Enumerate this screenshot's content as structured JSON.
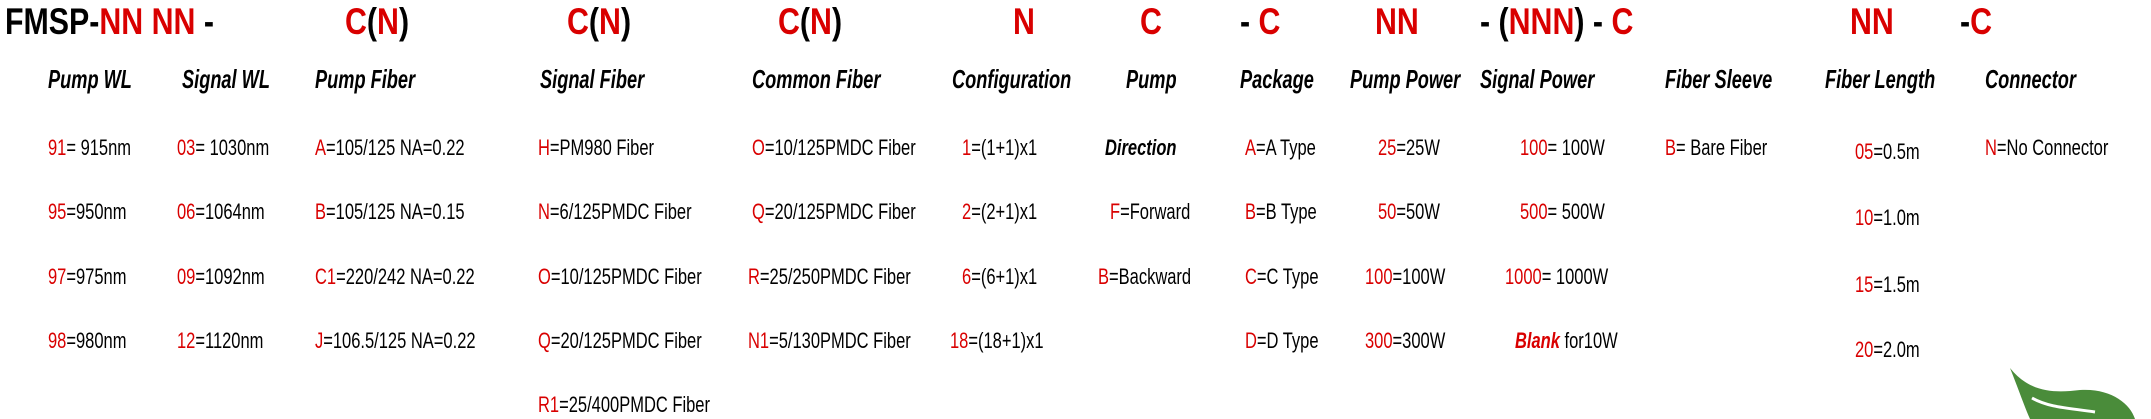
{
  "code_pattern": [
    {
      "parts": [
        {
          "t": "FMSP-",
          "c": "blk"
        },
        {
          "t": "NN NN",
          "c": "red"
        },
        {
          "t": " -",
          "c": "blk"
        }
      ]
    },
    {
      "parts": [
        {
          "t": "C",
          "c": "red"
        },
        {
          "t": "(",
          "c": "blk"
        },
        {
          "t": "N",
          "c": "red"
        },
        {
          "t": ")",
          "c": "blk"
        }
      ]
    },
    {
      "parts": [
        {
          "t": "C",
          "c": "red"
        },
        {
          "t": "(",
          "c": "blk"
        },
        {
          "t": "N",
          "c": "red"
        },
        {
          "t": ")",
          "c": "blk"
        }
      ]
    },
    {
      "parts": [
        {
          "t": "C",
          "c": "red"
        },
        {
          "t": "(",
          "c": "blk"
        },
        {
          "t": "N",
          "c": "red"
        },
        {
          "t": ")",
          "c": "blk"
        }
      ]
    },
    {
      "parts": [
        {
          "t": "N",
          "c": "red"
        }
      ]
    },
    {
      "parts": [
        {
          "t": "C",
          "c": "red"
        }
      ]
    },
    {
      "parts": [
        {
          "t": "- ",
          "c": "blk"
        },
        {
          "t": "C",
          "c": "red"
        }
      ]
    },
    {
      "parts": [
        {
          "t": "NN",
          "c": "red"
        }
      ]
    },
    {
      "parts": [
        {
          "t": "- (",
          "c": "blk"
        },
        {
          "t": "NNN",
          "c": "red"
        },
        {
          "t": ") - ",
          "c": "blk"
        },
        {
          "t": "C",
          "c": "red"
        }
      ]
    },
    {
      "parts": [
        {
          "t": "NN",
          "c": "red"
        }
      ]
    },
    {
      "parts": [
        {
          "t": "-",
          "c": "blk"
        },
        {
          "t": "C",
          "c": "red"
        }
      ]
    }
  ],
  "columns": [
    {
      "header": "Pump WL",
      "items": [
        {
          "code": "91",
          "desc": "= 915nm"
        },
        {
          "code": "95",
          "desc": "=950nm"
        },
        {
          "code": "97",
          "desc": "=975nm"
        },
        {
          "code": "98",
          "desc": "=980nm"
        }
      ]
    },
    {
      "header": "Signal WL",
      "items": [
        {
          "code": "03",
          "desc": "= 1030nm"
        },
        {
          "code": "06",
          "desc": "=1064nm"
        },
        {
          "code": "09",
          "desc": "=1092nm"
        },
        {
          "code": "12",
          "desc": "=1120nm"
        }
      ]
    },
    {
      "header": "Pump Fiber",
      "items": [
        {
          "code": "A",
          "desc": "=105/125 NA=0.22"
        },
        {
          "code": "B",
          "desc": "=105/125 NA=0.15"
        },
        {
          "code": "C1",
          "desc": "=220/242 NA=0.22"
        },
        {
          "code": "J",
          "desc": "=106.5/125 NA=0.22"
        }
      ]
    },
    {
      "header": "Signal Fiber",
      "items": [
        {
          "code": "H",
          "desc": "=PM980 Fiber"
        },
        {
          "code": "N",
          "desc": "=6/125PMDC Fiber"
        },
        {
          "code": "O",
          "desc": "=10/125PMDC Fiber"
        },
        {
          "code": "Q",
          "desc": "=20/125PMDC Fiber"
        },
        {
          "code": "R1",
          "desc": "=25/400PMDC Fiber"
        }
      ]
    },
    {
      "header": "Common Fiber",
      "items": [
        {
          "code": "O",
          "desc": "=10/125PMDC Fiber"
        },
        {
          "code": "Q",
          "desc": "=20/125PMDC Fiber"
        },
        {
          "code": "R",
          "desc": "=25/250PMDC Fiber"
        },
        {
          "code": "N1",
          "desc": "=5/130PMDC Fiber"
        }
      ]
    },
    {
      "header": "Configuration",
      "items": [
        {
          "code": "1",
          "desc": "=(1+1)x1"
        },
        {
          "code": "2",
          "desc": "=(2+1)x1"
        },
        {
          "code": "6",
          "desc": "=(6+1)x1"
        },
        {
          "code": "18",
          "desc": "=(18+1)x1"
        }
      ]
    },
    {
      "header": "Pump",
      "items": [
        {
          "code": "",
          "desc": "Direction"
        },
        {
          "code": "F",
          "desc": "=Forward"
        },
        {
          "code": "B",
          "desc": "=Backward"
        }
      ]
    },
    {
      "header": "Package",
      "items": [
        {
          "code": "A",
          "desc": "=A Type"
        },
        {
          "code": "B",
          "desc": "=B Type"
        },
        {
          "code": "C",
          "desc": "=C Type"
        },
        {
          "code": "D",
          "desc": "=D Type"
        }
      ]
    },
    {
      "header": "Pump Power",
      "items": [
        {
          "code": "25",
          "desc": "=25W"
        },
        {
          "code": "50",
          "desc": "=50W"
        },
        {
          "code": "100",
          "desc": "=100W"
        },
        {
          "code": "300",
          "desc": "=300W"
        }
      ]
    },
    {
      "header": "Signal Power",
      "items": [
        {
          "code": "100",
          "desc": "= 100W"
        },
        {
          "code": "500",
          "desc": "= 500W"
        },
        {
          "code": "1000",
          "desc": "= 1000W"
        },
        {
          "code": "Blank",
          "desc": " for10W"
        }
      ]
    },
    {
      "header": "Fiber Sleeve",
      "items": [
        {
          "code": "B",
          "desc": "= Bare Fiber"
        }
      ]
    },
    {
      "header": "Fiber Length",
      "items": [
        {
          "code": "05",
          "desc": "=0.5m"
        },
        {
          "code": "10",
          "desc": "=1.0m"
        },
        {
          "code": "15",
          "desc": "=1.5m"
        },
        {
          "code": "20",
          "desc": "=2.0m"
        }
      ]
    },
    {
      "header": "Connector",
      "items": [
        {
          "code": "N",
          "desc": "=No Connector"
        }
      ]
    }
  ],
  "colors": {
    "code": "#d90000",
    "text": "#000000",
    "leaf": "#4a8c3a"
  },
  "icons": {
    "logo": "leaf-icon"
  }
}
